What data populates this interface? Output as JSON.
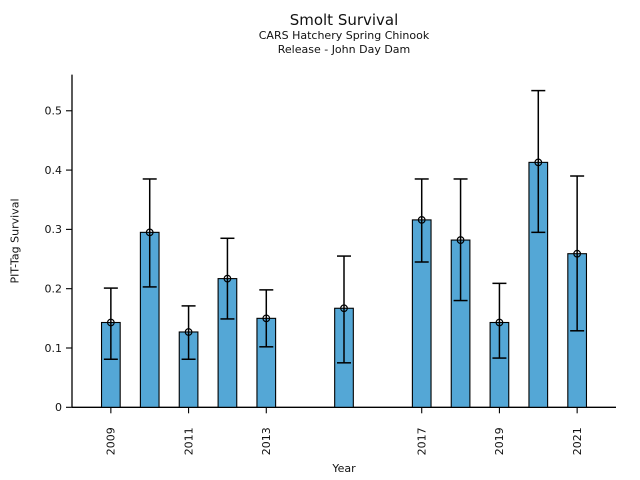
{
  "chart_data": {
    "type": "bar",
    "title": "Smolt Survival",
    "subtitle1": "CARS Hatchery Spring Chinook",
    "subtitle2": "Release - John Day Dam",
    "xlabel": "Year",
    "ylabel": "PIT-Tag Survival",
    "categories": [
      2009,
      2010,
      2011,
      2012,
      2013,
      2015,
      2017,
      2018,
      2019,
      2020,
      2021
    ],
    "values": [
      0.143,
      0.295,
      0.127,
      0.217,
      0.15,
      0.167,
      0.316,
      0.282,
      0.143,
      0.413,
      0.259
    ],
    "error_low": [
      0.081,
      0.203,
      0.081,
      0.149,
      0.102,
      0.075,
      0.245,
      0.18,
      0.083,
      0.295,
      0.129
    ],
    "error_high": [
      0.201,
      0.385,
      0.171,
      0.285,
      0.198,
      0.255,
      0.385,
      0.385,
      0.209,
      0.534,
      0.39
    ],
    "xlim": [
      2008,
      2022
    ],
    "ylim": [
      0,
      0.561
    ],
    "xticks": [
      2009,
      2011,
      2013,
      2017,
      2019,
      2021
    ],
    "yticks": [
      0,
      0.1,
      0.2,
      0.3,
      0.4,
      0.5
    ],
    "ytick_labels": [
      "0",
      "0.1",
      "0.2",
      "0.3",
      "0.4",
      "0.5"
    ],
    "bar_width_years": 0.48,
    "bar_color": "#54a7d6",
    "bar_edge_color": "#000000",
    "error_color": "#000000",
    "marker": "open-circle",
    "grid": false,
    "legend": "none"
  }
}
